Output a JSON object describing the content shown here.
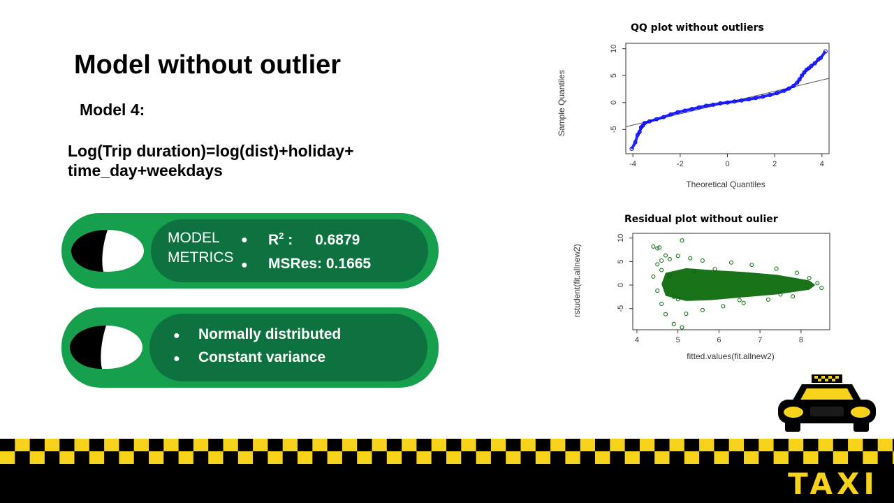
{
  "slide": {
    "title": "Model without outlier",
    "subtitle": "Model 4:",
    "formula_line1": "Log(Trip duration)=log(dist)+holiday+",
    "formula_line2": "time_day+weekdays"
  },
  "metrics_box": {
    "label_line1": "MODEL",
    "label_line2": "METRICS",
    "items": [
      {
        "bullet": "●",
        "name": "R",
        "superscript": "2",
        "sep": " :",
        "value": "0.6879"
      },
      {
        "bullet": "●",
        "name": "MSRes:",
        "value": "0.1665"
      }
    ]
  },
  "assumptions_box": {
    "items": [
      {
        "bullet": "●",
        "text": "Normally distributed"
      },
      {
        "bullet": "●",
        "text": "Constant variance"
      }
    ]
  },
  "chart_data": [
    {
      "type": "scatter",
      "title": "QQ plot without outliers",
      "xlabel": "Theoretical Quantiles",
      "ylabel": "Sample Quantiles",
      "x_ticks": [
        "-4",
        "-2",
        "0",
        "2",
        "4"
      ],
      "y_ticks": [
        "-5",
        "0",
        "5",
        "10"
      ],
      "xlim": [
        -4.3,
        4.3
      ],
      "ylim": [
        -9.5,
        11
      ],
      "point_color": "#0000ff",
      "reference_line": {
        "x": [
          -4.3,
          4.3
        ],
        "y": [
          -4.5,
          4.5
        ]
      },
      "points": [
        [
          -4.05,
          -8.6
        ],
        [
          -3.9,
          -7.4
        ],
        [
          -3.8,
          -6.0
        ],
        [
          -3.72,
          -5.5
        ],
        [
          -3.65,
          -4.6
        ],
        [
          -3.58,
          -4.3
        ],
        [
          -3.5,
          -3.8
        ],
        [
          -3.3,
          -3.5
        ],
        [
          -3.0,
          -3.1
        ],
        [
          -2.7,
          -2.7
        ],
        [
          -2.4,
          -2.2
        ],
        [
          -2.1,
          -1.8
        ],
        [
          -1.8,
          -1.5
        ],
        [
          -1.5,
          -1.2
        ],
        [
          -1.2,
          -0.9
        ],
        [
          -0.9,
          -0.6
        ],
        [
          -0.6,
          -0.4
        ],
        [
          -0.3,
          -0.15
        ],
        [
          0.0,
          0.0
        ],
        [
          0.3,
          0.2
        ],
        [
          0.6,
          0.4
        ],
        [
          0.9,
          0.6
        ],
        [
          1.2,
          0.85
        ],
        [
          1.5,
          1.1
        ],
        [
          1.8,
          1.4
        ],
        [
          2.1,
          1.75
        ],
        [
          2.4,
          2.2
        ],
        [
          2.6,
          2.6
        ],
        [
          2.8,
          3.1
        ],
        [
          2.95,
          3.7
        ],
        [
          3.05,
          4.3
        ],
        [
          3.15,
          5.0
        ],
        [
          3.25,
          5.6
        ],
        [
          3.35,
          6.1
        ],
        [
          3.45,
          6.4
        ],
        [
          3.55,
          6.8
        ],
        [
          3.7,
          7.3
        ],
        [
          3.85,
          8.0
        ],
        [
          3.95,
          8.3
        ],
        [
          4.15,
          9.5
        ]
      ]
    },
    {
      "type": "scatter",
      "title": "Residual plot without oulier",
      "xlabel": "fitted.values(fit.allnew2)",
      "ylabel": "rstudent(fit.allnew2)",
      "x_ticks": [
        "4",
        "5",
        "6",
        "7",
        "8"
      ],
      "y_ticks": [
        "-5",
        "0",
        "5",
        "10"
      ],
      "xlim": [
        3.9,
        8.7
      ],
      "ylim": [
        -9.5,
        11
      ],
      "point_color": "#006400",
      "points": [
        [
          4.4,
          8.2
        ],
        [
          4.5,
          7.8
        ],
        [
          4.55,
          8.0
        ],
        [
          4.6,
          5.2
        ],
        [
          4.7,
          6.3
        ],
        [
          4.5,
          4.4
        ],
        [
          4.6,
          3.2
        ],
        [
          4.4,
          1.8
        ],
        [
          4.5,
          -1.2
        ],
        [
          4.6,
          -4.0
        ],
        [
          4.7,
          -6.2
        ],
        [
          4.9,
          -8.3
        ],
        [
          5.1,
          -9.0
        ],
        [
          4.8,
          5.5
        ],
        [
          5.0,
          6.2
        ],
        [
          5.3,
          5.7
        ],
        [
          5.6,
          5.2
        ],
        [
          5.1,
          9.5
        ],
        [
          6.3,
          4.8
        ],
        [
          6.8,
          4.3
        ],
        [
          7.4,
          3.5
        ],
        [
          7.9,
          2.6
        ],
        [
          8.2,
          1.5
        ],
        [
          8.4,
          0.4
        ],
        [
          8.5,
          -0.6
        ],
        [
          5.2,
          -6.1
        ],
        [
          5.6,
          -5.3
        ],
        [
          6.1,
          -4.5
        ],
        [
          6.6,
          -3.8
        ],
        [
          7.2,
          -3.1
        ],
        [
          7.8,
          -2.4
        ],
        [
          5.0,
          -3.0
        ],
        [
          4.8,
          2.0
        ],
        [
          4.9,
          -2.5
        ],
        [
          5.4,
          3.0
        ],
        [
          5.9,
          3.4
        ],
        [
          6.5,
          -3.2
        ],
        [
          7.5,
          -2.0
        ]
      ]
    }
  ],
  "footer": {
    "taxi_text": "TAXI",
    "colors": {
      "yellow": "#f6d21a",
      "black": "#000000",
      "green": "#16a04e",
      "dark_green": "#0e7240"
    }
  }
}
